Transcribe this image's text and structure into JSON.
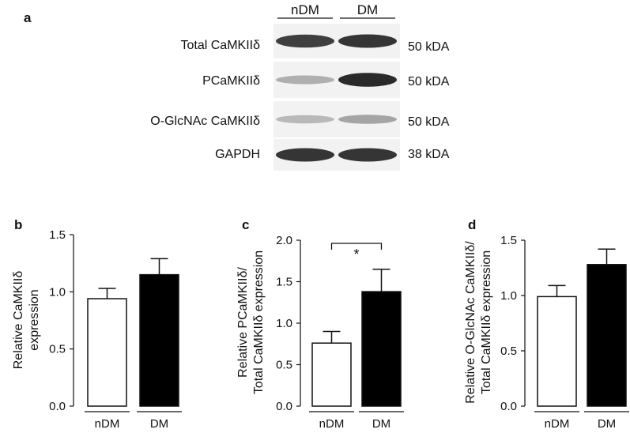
{
  "panel_labels": [
    "a",
    "b",
    "c",
    "d"
  ],
  "blot": {
    "lanes": [
      "nDM",
      "DM"
    ],
    "rows": [
      {
        "label": "Total CaMKIIδ",
        "kda": "50 kDA",
        "intensity": [
          0.85,
          0.9
        ]
      },
      {
        "label": "PCaMKIIδ",
        "kda": "50 kDA",
        "intensity": [
          0.3,
          0.95
        ]
      },
      {
        "label": "O-GlcNAc CaMKIIδ",
        "kda": "50 kDA",
        "intensity": [
          0.25,
          0.35
        ]
      },
      {
        "label": "GAPDH",
        "kda": "38 kDA",
        "intensity": [
          0.9,
          0.9
        ]
      }
    ]
  },
  "chart_data": [
    {
      "type": "bar",
      "panel": "b",
      "categories": [
        "nDM",
        "DM"
      ],
      "values": [
        0.94,
        1.15
      ],
      "errors": [
        0.09,
        0.14
      ],
      "fills": [
        "#ffffff",
        "#000000"
      ],
      "ylabel": [
        "Relative CaMKIIδ",
        "expression"
      ],
      "ylim": [
        0,
        1.5
      ],
      "yticks": [
        "0.0",
        "0.5",
        "1.0",
        "1.5"
      ],
      "significance": null
    },
    {
      "type": "bar",
      "panel": "c",
      "categories": [
        "nDM",
        "DM"
      ],
      "values": [
        0.76,
        1.38
      ],
      "errors": [
        0.14,
        0.27
      ],
      "fills": [
        "#ffffff",
        "#000000"
      ],
      "ylabel": [
        "Relative PCaMKIIδ/",
        "Total CaMKIIδ expression"
      ],
      "ylim": [
        0,
        2.0
      ],
      "yticks": [
        "0.0",
        "0.5",
        "1.0",
        "1.5",
        "2.0"
      ],
      "significance": "*"
    },
    {
      "type": "bar",
      "panel": "d",
      "categories": [
        "nDM",
        "DM"
      ],
      "values": [
        0.99,
        1.28
      ],
      "errors": [
        0.1,
        0.14
      ],
      "fills": [
        "#ffffff",
        "#000000"
      ],
      "ylabel": [
        "Relative O-GlcNAc CaMKIIδ/",
        "Total CaMKIIδ expression"
      ],
      "ylim": [
        0,
        1.5
      ],
      "yticks": [
        "0.0",
        "0.5",
        "1.0",
        "1.5"
      ],
      "significance": null
    }
  ]
}
